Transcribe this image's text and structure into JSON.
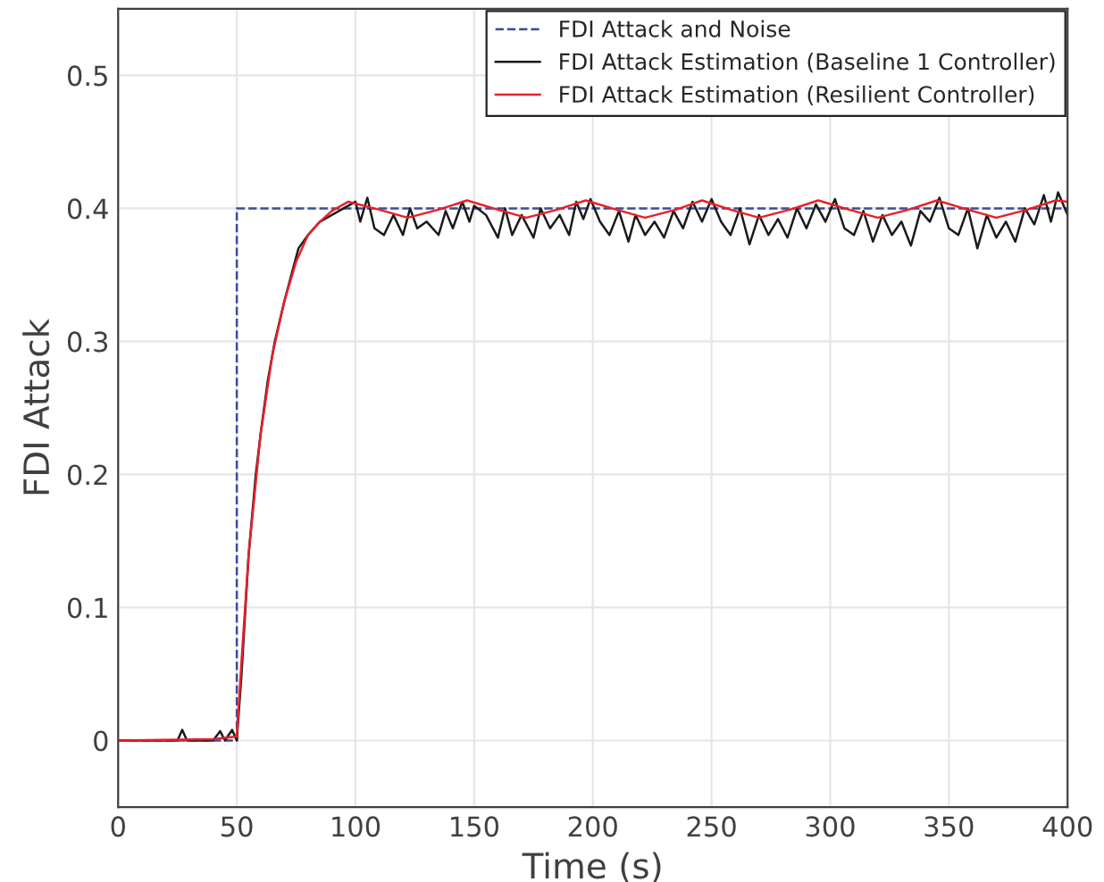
{
  "chart_data": {
    "type": "line",
    "xlabel": "Time (s)",
    "ylabel": "FDI Attack",
    "xlim": [
      0,
      400
    ],
    "ylim": [
      -0.05,
      0.55
    ],
    "xticks": [
      0,
      50,
      100,
      150,
      200,
      250,
      300,
      350,
      400
    ],
    "yticks": [
      0,
      {
        "value": 0.1,
        "label": "0.1"
      },
      {
        "value": 0.2,
        "label": "0.2"
      },
      {
        "value": 0.3,
        "label": "0.3"
      },
      {
        "value": 0.4,
        "label": "0.4"
      },
      {
        "value": 0.5,
        "label": "0.5"
      }
    ],
    "grid": true,
    "legend": "top right",
    "marker": "none",
    "series": [
      {
        "name": "FDI Attack and Noise",
        "color": "#3c4b9a",
        "line_style": "dashed",
        "x": [
          0,
          50,
          50,
          400
        ],
        "values": [
          0,
          0,
          0.4,
          0.4
        ]
      },
      {
        "name": "FDI Attack Estimation (Baseline 1 Controller)",
        "color": "#1a1a1a",
        "line_style": "solid",
        "x": [
          0,
          25,
          27,
          29,
          40,
          43,
          45,
          48,
          50,
          52,
          55,
          58,
          60,
          63,
          66,
          70,
          73,
          76,
          80,
          85,
          90,
          95,
          100,
          102,
          105,
          108,
          112,
          116,
          120,
          123,
          126,
          130,
          135,
          138,
          141,
          145,
          148,
          150,
          155,
          160,
          163,
          166,
          170,
          175,
          178,
          182,
          186,
          190,
          193,
          196,
          199,
          203,
          207,
          211,
          215,
          218,
          222,
          226,
          230,
          234,
          238,
          242,
          246,
          250,
          254,
          258,
          262,
          266,
          270,
          274,
          278,
          282,
          286,
          290,
          294,
          298,
          302,
          306,
          310,
          314,
          318,
          322,
          326,
          330,
          334,
          338,
          342,
          346,
          350,
          354,
          358,
          362,
          366,
          370,
          374,
          378,
          382,
          386,
          390,
          393,
          396,
          400
        ],
        "values": [
          0,
          0,
          0.008,
          0,
          0,
          0.007,
          0,
          0.008,
          0,
          0.05,
          0.14,
          0.2,
          0.23,
          0.27,
          0.3,
          0.33,
          0.35,
          0.37,
          0.38,
          0.39,
          0.395,
          0.4,
          0.405,
          0.39,
          0.408,
          0.385,
          0.38,
          0.395,
          0.38,
          0.4,
          0.385,
          0.39,
          0.38,
          0.398,
          0.385,
          0.405,
          0.39,
          0.402,
          0.395,
          0.378,
          0.4,
          0.38,
          0.395,
          0.378,
          0.4,
          0.385,
          0.395,
          0.38,
          0.405,
          0.392,
          0.407,
          0.39,
          0.38,
          0.398,
          0.375,
          0.395,
          0.38,
          0.39,
          0.378,
          0.398,
          0.385,
          0.405,
          0.39,
          0.407,
          0.39,
          0.38,
          0.4,
          0.373,
          0.395,
          0.38,
          0.392,
          0.378,
          0.4,
          0.385,
          0.403,
          0.39,
          0.407,
          0.385,
          0.38,
          0.398,
          0.375,
          0.395,
          0.38,
          0.39,
          0.372,
          0.398,
          0.39,
          0.408,
          0.385,
          0.38,
          0.4,
          0.37,
          0.395,
          0.378,
          0.39,
          0.375,
          0.4,
          0.388,
          0.41,
          0.39,
          0.412,
          0.395
        ]
      },
      {
        "name": "FDI Attack Estimation (Resilient Controller)",
        "color": "#e8202a",
        "line_style": "solid",
        "x": [
          0,
          40,
          50,
          52,
          55,
          60,
          65,
          70,
          75,
          80,
          85,
          90,
          97,
          110,
          122,
          135,
          147,
          160,
          172,
          185,
          197,
          210,
          222,
          235,
          246,
          258,
          270,
          283,
          295,
          308,
          320,
          333,
          345,
          358,
          370,
          383,
          395,
          400
        ],
        "values": [
          0,
          0.001,
          0.003,
          0.06,
          0.14,
          0.23,
          0.29,
          0.33,
          0.36,
          0.38,
          0.39,
          0.398,
          0.405,
          0.399,
          0.393,
          0.399,
          0.406,
          0.399,
          0.393,
          0.399,
          0.406,
          0.399,
          0.393,
          0.399,
          0.406,
          0.399,
          0.393,
          0.399,
          0.406,
          0.399,
          0.393,
          0.399,
          0.406,
          0.399,
          0.393,
          0.399,
          0.406,
          0.405
        ]
      }
    ]
  }
}
